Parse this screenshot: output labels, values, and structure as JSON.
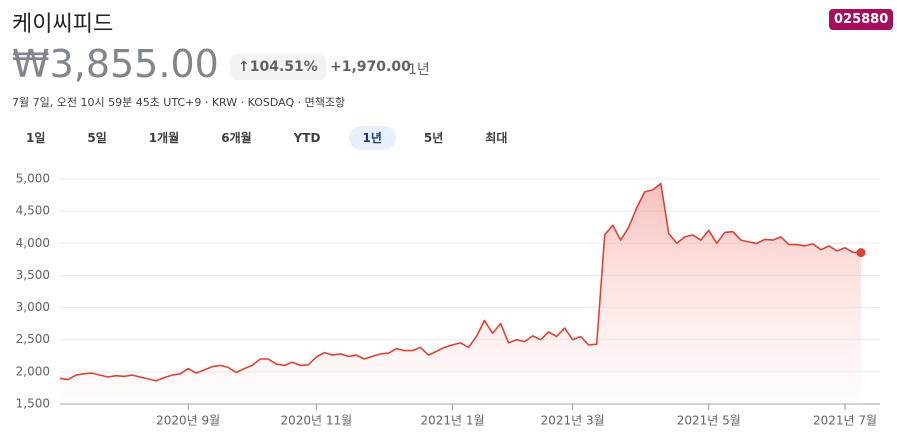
{
  "header": {
    "title": "케이씨피드",
    "ticker": "025880",
    "price": "₩3,855.00",
    "change_pct": "104.51%",
    "change_abs": "+1,970.00",
    "change_period": "1년",
    "info": "7월 7일, 오전 10시 59분 45초 UTC+9 · KRW · KOSDAQ · 면책조항"
  },
  "tabs": {
    "items": [
      "1일",
      "5일",
      "1개월",
      "6개월",
      "YTD",
      "1년",
      "5년",
      "최대"
    ],
    "selected": 5
  },
  "chart_data": {
    "type": "line",
    "color": "#db4437",
    "grid": true,
    "ylim": [
      1500,
      5000
    ],
    "yticks": [
      {
        "value": 1500,
        "label": "1,500"
      },
      {
        "value": 2000,
        "label": "2,000"
      },
      {
        "value": 2500,
        "label": "2,500"
      },
      {
        "value": 3000,
        "label": "3,000"
      },
      {
        "value": 3500,
        "label": "3,500"
      },
      {
        "value": 4000,
        "label": "4,000"
      },
      {
        "value": 4500,
        "label": "4,500"
      },
      {
        "value": 5000,
        "label": "5,000"
      }
    ],
    "categories": [
      null,
      null,
      null,
      null,
      null,
      null,
      null,
      null,
      null,
      null,
      null,
      null,
      null,
      null,
      null,
      null,
      "2020년 9월",
      null,
      null,
      null,
      null,
      null,
      null,
      null,
      null,
      null,
      null,
      null,
      null,
      null,
      null,
      null,
      "2020년 11월",
      null,
      null,
      null,
      null,
      null,
      null,
      null,
      null,
      null,
      null,
      null,
      null,
      null,
      null,
      null,
      null,
      "2021년 1월",
      null,
      null,
      null,
      null,
      null,
      null,
      null,
      null,
      null,
      null,
      null,
      null,
      null,
      null,
      "2021년 3월",
      null,
      null,
      null,
      null,
      null,
      null,
      null,
      null,
      null,
      null,
      null,
      null,
      null,
      null,
      null,
      null,
      "2021년 5월",
      null,
      null,
      null,
      null,
      null,
      null,
      null,
      null,
      null,
      null,
      null,
      null,
      null,
      null,
      null,
      null,
      "2021년 7월",
      null,
      null
    ],
    "values": [
      1900,
      1880,
      1950,
      1970,
      1980,
      1950,
      1920,
      1940,
      1930,
      1950,
      1920,
      1890,
      1860,
      1910,
      1950,
      1970,
      2050,
      1980,
      2030,
      2080,
      2100,
      2070,
      1990,
      2050,
      2100,
      2200,
      2200,
      2120,
      2100,
      2150,
      2100,
      2110,
      2230,
      2300,
      2260,
      2280,
      2240,
      2260,
      2200,
      2240,
      2280,
      2290,
      2360,
      2330,
      2330,
      2380,
      2260,
      2320,
      2380,
      2420,
      2450,
      2380,
      2550,
      2800,
      2600,
      2750,
      2450,
      2500,
      2470,
      2560,
      2500,
      2620,
      2550,
      2680,
      2500,
      2550,
      2420,
      2430,
      4130,
      4280,
      4050,
      4250,
      4550,
      4800,
      4830,
      4930,
      4150,
      4000,
      4100,
      4130,
      4050,
      4200,
      4000,
      4170,
      4180,
      4050,
      4020,
      4000,
      4060,
      4050,
      4100,
      3980,
      3980,
      3960,
      3990,
      3900,
      3960,
      3880,
      3930,
      3860,
      3855
    ]
  }
}
